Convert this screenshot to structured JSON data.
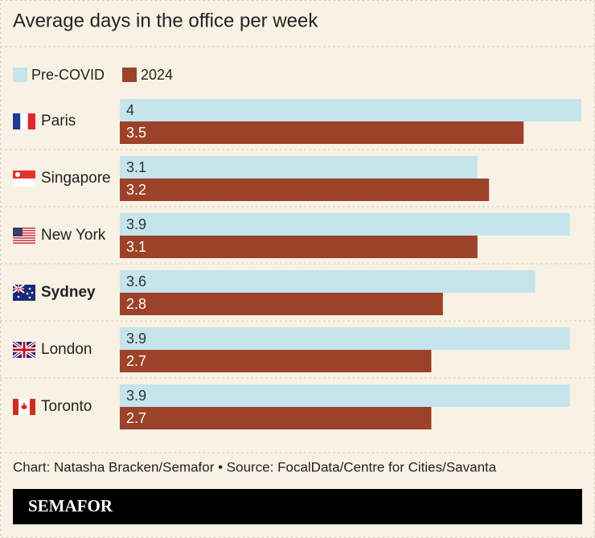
{
  "chart_data": {
    "type": "hbar",
    "title": "Average days in the office per week",
    "categories": [
      "Paris",
      "Singapore",
      "New York",
      "Sydney",
      "London",
      "Toronto"
    ],
    "highlight": "Sydney",
    "series": [
      {
        "name": "Pre-COVID",
        "color": "#c6e4ec",
        "values": [
          4,
          3.1,
          3.9,
          3.6,
          3.9,
          3.9
        ]
      },
      {
        "name": "2024",
        "color": "#9c4229",
        "values": [
          3.5,
          3.2,
          3.1,
          2.8,
          2.7,
          2.7
        ]
      }
    ],
    "xlim": [
      0,
      4
    ],
    "source": "Chart: Natasha Bracken/Semafor • Source: FocalData/Centre for Cities/Savanta",
    "brand": "SEMAFOR"
  }
}
